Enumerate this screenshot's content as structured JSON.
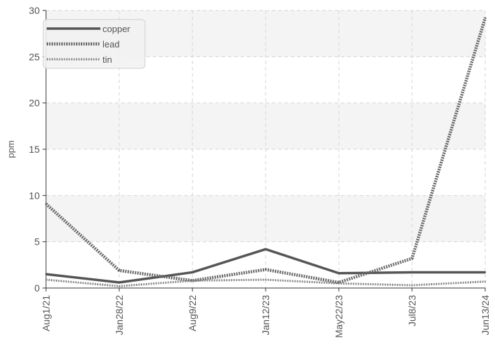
{
  "chart_data": {
    "type": "line",
    "title": "",
    "xlabel": "",
    "ylabel": "ppm",
    "ylim": [
      0,
      30
    ],
    "yticks": [
      0,
      5,
      10,
      15,
      20,
      25,
      30
    ],
    "categories": [
      "Aug1/21",
      "Jan28/22",
      "Aug9/22",
      "Jan12/23",
      "May22/23",
      "Jul8/23",
      "Jun13/24"
    ],
    "grid": true,
    "legend_position": "top-left",
    "series": [
      {
        "name": "copper",
        "style": "solid",
        "color": "#555555",
        "values": [
          1.5,
          0.6,
          1.7,
          4.2,
          1.6,
          1.7,
          1.7
        ]
      },
      {
        "name": "lead",
        "style": "dense-dotted",
        "color": "#666666",
        "values": [
          9.1,
          1.9,
          0.8,
          2.0,
          0.6,
          3.2,
          29.2
        ]
      },
      {
        "name": "tin",
        "style": "light-dotted",
        "color": "#8a8a8a",
        "values": [
          0.9,
          0.2,
          0.8,
          0.9,
          0.5,
          0.3,
          0.7
        ]
      }
    ]
  }
}
